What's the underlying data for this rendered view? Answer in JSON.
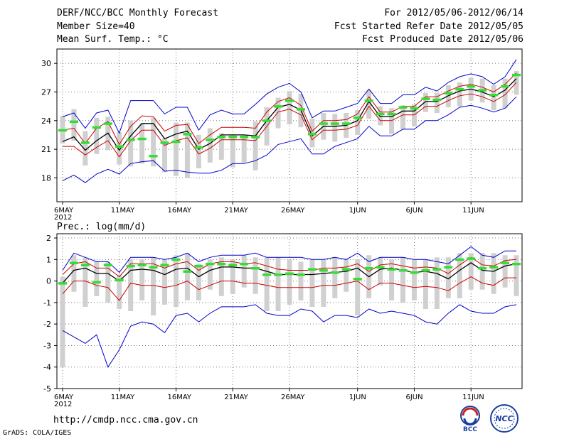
{
  "header": {
    "title": "DERF/NCC/BCC Monthly Forecast",
    "member_size": "Member Size=40",
    "variable": "Mean Surf. Temp.: °C",
    "period": "For 2012/05/06-2012/06/14",
    "start_date": "Fcst Started Refer Date 2012/05/05",
    "produced_date": "Fcst Produced Date 2012/05/06"
  },
  "footer": {
    "url": "http://cmdp.ncc.cma.gov.cn",
    "credit": "GrADS: COLA/IGES",
    "logo_left": "BCC",
    "logo_right": "NCC"
  },
  "colors": {
    "ensemble_mean": "#000000",
    "inner_band": "#cc0000",
    "outer_band": "#0000cc",
    "member_bar": "#d0d0d0",
    "median_mark": "#33dd33",
    "grid": "#777777"
  },
  "chart_data": [
    {
      "type": "line",
      "title": "Mean Surf. Temp.: °C",
      "x_ticks": [
        {
          "day": 0,
          "label": "6MAY",
          "sub": "2012"
        },
        {
          "day": 5,
          "label": "11MAY"
        },
        {
          "day": 10,
          "label": "16MAY"
        },
        {
          "day": 15,
          "label": "21MAY"
        },
        {
          "day": 20,
          "label": "26MAY"
        },
        {
          "day": 26,
          "label": "1JUN"
        },
        {
          "day": 31,
          "label": "6JUN"
        },
        {
          "day": 36,
          "label": "11JUN"
        }
      ],
      "xlim": [
        -0.5,
        40.5
      ],
      "ylim": [
        15.5,
        31.5
      ],
      "y_ticks": [
        18,
        21,
        24,
        27,
        30
      ],
      "mean": [
        21.8,
        22.3,
        20.9,
        21.9,
        22.7,
        20.9,
        22.4,
        23.7,
        23.7,
        22.1,
        22.6,
        22.9,
        21.0,
        21.6,
        22.5,
        22.5,
        22.5,
        22.4,
        24.0,
        25.4,
        25.7,
        25.1,
        22.4,
        23.4,
        23.4,
        23.5,
        24.0,
        26.0,
        24.4,
        24.4,
        25.0,
        25.0,
        26.0,
        26.0,
        26.6,
        27.1,
        27.3,
        27.0,
        26.5,
        27.2,
        28.4
      ],
      "series": [
        {
          "name": "outer_upper",
          "values": [
            24.4,
            24.8,
            23.2,
            24.8,
            25.1,
            22.7,
            26.1,
            26.1,
            26.1,
            24.7,
            25.4,
            25.4,
            23.0,
            24.6,
            25.1,
            24.7,
            24.7,
            25.7,
            26.8,
            27.5,
            27.9,
            27.0,
            24.3,
            25.0,
            25.0,
            25.4,
            25.8,
            27.3,
            25.8,
            25.8,
            26.7,
            26.7,
            27.5,
            27.1,
            28.0,
            28.6,
            28.9,
            28.6,
            27.8,
            28.6,
            30.4
          ]
        },
        {
          "name": "inner_upper",
          "values": [
            23.0,
            23.2,
            21.6,
            23.2,
            23.9,
            21.5,
            23.4,
            24.5,
            24.4,
            22.9,
            23.5,
            23.6,
            21.6,
            22.5,
            23.3,
            23.3,
            23.3,
            23.2,
            24.9,
            26.0,
            26.4,
            25.6,
            22.9,
            24.0,
            24.0,
            24.1,
            24.7,
            26.5,
            24.9,
            24.9,
            25.5,
            25.5,
            26.5,
            26.5,
            27.1,
            27.6,
            27.8,
            27.5,
            27.0,
            27.8,
            29.0
          ]
        },
        {
          "name": "inner_lower",
          "values": [
            21.3,
            21.3,
            20.4,
            21.2,
            21.9,
            20.2,
            21.9,
            23.0,
            23.0,
            21.4,
            21.9,
            22.2,
            20.5,
            21.1,
            22.0,
            22.0,
            22.0,
            21.9,
            23.4,
            24.9,
            25.2,
            24.6,
            22.0,
            23.0,
            23.0,
            23.1,
            23.5,
            25.5,
            24.0,
            24.0,
            24.6,
            24.6,
            25.5,
            25.5,
            26.1,
            26.6,
            26.8,
            26.5,
            26.0,
            26.7,
            28.0
          ]
        },
        {
          "name": "outer_lower",
          "values": [
            17.7,
            18.3,
            17.5,
            18.4,
            18.9,
            18.4,
            19.5,
            19.7,
            19.8,
            18.7,
            18.8,
            18.6,
            18.5,
            18.5,
            18.8,
            19.5,
            19.5,
            19.8,
            20.4,
            21.5,
            21.8,
            22.1,
            20.5,
            20.5,
            21.3,
            21.7,
            22.1,
            23.4,
            22.4,
            22.4,
            23.1,
            23.1,
            24.0,
            24.0,
            24.6,
            25.4,
            25.6,
            25.3,
            24.9,
            25.3,
            26.5
          ]
        }
      ],
      "member_range": [
        [
          21.6,
          24.5
        ],
        [
          21.9,
          25.2
        ],
        [
          19.3,
          22.9
        ],
        [
          20.5,
          24.3
        ],
        [
          20.9,
          24.4
        ],
        [
          19.4,
          22.8
        ],
        [
          19.2,
          24.0
        ],
        [
          19.5,
          23.7
        ],
        [
          19.2,
          24.3
        ],
        [
          18.6,
          22.2
        ],
        [
          18.2,
          23.8
        ],
        [
          18.0,
          23.8
        ],
        [
          19.0,
          22.5
        ],
        [
          19.6,
          23.2
        ],
        [
          19.9,
          22.7
        ],
        [
          19.1,
          22.5
        ],
        [
          19.6,
          22.5
        ],
        [
          18.8,
          23.9
        ],
        [
          21.4,
          25.4
        ],
        [
          23.2,
          26.4
        ],
        [
          23.6,
          27.1
        ],
        [
          23.3,
          26.8
        ],
        [
          21.2,
          24.2
        ],
        [
          22.0,
          24.8
        ],
        [
          21.8,
          24.7
        ],
        [
          22.2,
          24.8
        ],
        [
          22.5,
          25.1
        ],
        [
          24.2,
          27.2
        ],
        [
          23.5,
          25.5
        ],
        [
          22.6,
          25.3
        ],
        [
          23.1,
          25.6
        ],
        [
          23.4,
          25.7
        ],
        [
          24.9,
          26.9
        ],
        [
          24.8,
          26.9
        ],
        [
          25.4,
          27.7
        ],
        [
          25.5,
          28.0
        ],
        [
          26.1,
          28.5
        ],
        [
          25.9,
          28.4
        ],
        [
          25.1,
          27.7
        ],
        [
          25.3,
          28.4
        ],
        [
          26.7,
          29.2
        ]
      ],
      "medians": [
        23.0,
        23.9,
        21.7,
        23.3,
        23.7,
        21.3,
        22.0,
        22.1,
        20.3,
        21.7,
        21.8,
        22.6,
        21.2,
        22.0,
        22.3,
        22.3,
        22.3,
        22.3,
        24.0,
        25.5,
        26.1,
        25.2,
        22.6,
        23.7,
        23.7,
        23.7,
        24.3,
        26.1,
        24.7,
        24.7,
        25.4,
        25.3,
        26.3,
        26.2,
        26.9,
        27.3,
        27.6,
        27.2,
        26.7,
        27.6,
        28.8
      ]
    },
    {
      "type": "line",
      "title": "Prec.: log(mm/d)",
      "x_ticks": [
        {
          "day": 0,
          "label": "6MAY",
          "sub": "2012"
        },
        {
          "day": 5,
          "label": "11MAY"
        },
        {
          "day": 10,
          "label": "16MAY"
        },
        {
          "day": 15,
          "label": "21MAY"
        },
        {
          "day": 20,
          "label": "26MAY"
        },
        {
          "day": 26,
          "label": "1JUN"
        },
        {
          "day": 31,
          "label": "6JUN"
        },
        {
          "day": 36,
          "label": "11JUN"
        }
      ],
      "xlim": [
        -0.5,
        40.5
      ],
      "ylim": [
        -5,
        2.2
      ],
      "y_ticks": [
        -5,
        -4,
        -3,
        -2,
        -1,
        0,
        1,
        2
      ],
      "mean": [
        -0.1,
        0.5,
        0.6,
        0.35,
        0.35,
        0.0,
        0.5,
        0.55,
        0.5,
        0.3,
        0.55,
        0.6,
        0.2,
        0.5,
        0.65,
        0.65,
        0.6,
        0.6,
        0.45,
        0.3,
        0.3,
        0.3,
        0.3,
        0.35,
        0.4,
        0.45,
        0.6,
        0.2,
        0.55,
        0.6,
        0.5,
        0.4,
        0.45,
        0.35,
        0.1,
        0.5,
        0.85,
        0.5,
        0.45,
        0.7,
        0.8
      ],
      "series": [
        {
          "name": "outer_upper",
          "values": [
            0.5,
            1.3,
            1.1,
            0.9,
            0.9,
            0.4,
            1.1,
            1.1,
            1.1,
            1.0,
            1.1,
            1.3,
            0.9,
            1.1,
            1.2,
            1.2,
            1.2,
            1.3,
            1.1,
            1.1,
            1.1,
            1.1,
            1.0,
            1.0,
            1.1,
            1.0,
            1.3,
            0.9,
            1.1,
            1.1,
            1.1,
            1.0,
            1.0,
            0.9,
            0.8,
            1.2,
            1.6,
            1.2,
            1.1,
            1.4,
            1.4
          ]
        },
        {
          "name": "inner_upper",
          "values": [
            0.3,
            0.8,
            0.9,
            0.6,
            0.6,
            0.2,
            0.8,
            0.8,
            0.8,
            0.6,
            0.8,
            0.9,
            0.5,
            0.8,
            0.9,
            0.9,
            0.8,
            0.85,
            0.7,
            0.55,
            0.5,
            0.5,
            0.5,
            0.6,
            0.6,
            0.65,
            0.8,
            0.45,
            0.75,
            0.8,
            0.7,
            0.6,
            0.65,
            0.6,
            0.35,
            0.75,
            1.1,
            0.75,
            0.7,
            0.95,
            1.0
          ]
        },
        {
          "name": "inner_lower",
          "values": [
            -0.6,
            0.0,
            0.0,
            -0.2,
            -0.3,
            -0.9,
            -0.1,
            -0.2,
            -0.2,
            -0.3,
            -0.2,
            0.0,
            -0.4,
            -0.2,
            0.0,
            0.0,
            -0.1,
            -0.1,
            -0.2,
            -0.3,
            -0.3,
            -0.3,
            -0.3,
            -0.2,
            -0.2,
            -0.1,
            0.0,
            -0.4,
            -0.1,
            -0.1,
            -0.2,
            -0.3,
            -0.25,
            -0.3,
            -0.45,
            -0.1,
            0.2,
            -0.1,
            -0.2,
            0.15,
            0.15
          ]
        },
        {
          "name": "outer_lower",
          "values": [
            -2.3,
            -2.6,
            -2.9,
            -2.5,
            -4.0,
            -3.2,
            -2.1,
            -1.9,
            -2.0,
            -2.4,
            -1.6,
            -1.5,
            -1.9,
            -1.5,
            -1.2,
            -1.2,
            -1.2,
            -1.1,
            -1.5,
            -1.6,
            -1.6,
            -1.3,
            -1.4,
            -1.9,
            -1.6,
            -1.6,
            -1.7,
            -1.3,
            -1.5,
            -1.4,
            -1.5,
            -1.6,
            -1.9,
            -2.0,
            -1.5,
            -1.1,
            -1.4,
            -1.5,
            -1.5,
            -1.2,
            -1.1
          ]
        }
      ],
      "member_range": [
        [
          -4.0,
          0.2
        ],
        [
          -0.5,
          1.2
        ],
        [
          -1.2,
          1.1
        ],
        [
          -0.7,
          0.9
        ],
        [
          -1.0,
          0.9
        ],
        [
          -1.3,
          0.3
        ],
        [
          -1.4,
          1.0
        ],
        [
          -0.9,
          1.0
        ],
        [
          -1.6,
          1.1
        ],
        [
          -1.1,
          1.0
        ],
        [
          -1.2,
          1.2
        ],
        [
          -0.9,
          1.3
        ],
        [
          -0.9,
          0.8
        ],
        [
          -0.4,
          1.0
        ],
        [
          -0.7,
          1.1
        ],
        [
          -0.6,
          1.0
        ],
        [
          -0.3,
          1.2
        ],
        [
          -0.6,
          1.1
        ],
        [
          -1.4,
          1.1
        ],
        [
          -1.4,
          1.1
        ],
        [
          -1.1,
          1.0
        ],
        [
          -0.9,
          0.9
        ],
        [
          -1.2,
          1.0
        ],
        [
          -1.2,
          1.0
        ],
        [
          -0.8,
          1.1
        ],
        [
          -0.5,
          1.0
        ],
        [
          -1.6,
          1.0
        ],
        [
          -0.8,
          1.2
        ],
        [
          -0.2,
          1.1
        ],
        [
          -0.9,
          1.0
        ],
        [
          -1.0,
          1.1
        ],
        [
          -0.9,
          1.0
        ],
        [
          -1.3,
          1.0
        ],
        [
          -1.3,
          1.1
        ],
        [
          -0.8,
          1.1
        ],
        [
          -0.8,
          1.3
        ],
        [
          -0.4,
          1.3
        ],
        [
          -0.4,
          1.3
        ],
        [
          -0.6,
          1.3
        ],
        [
          -0.3,
          1.2
        ],
        [
          -0.7,
          1.2
        ]
      ],
      "medians": [
        -0.1,
        0.85,
        0.75,
        -0.05,
        0.75,
        0.05,
        0.7,
        0.75,
        0.65,
        0.75,
        1.0,
        0.45,
        0.7,
        0.8,
        0.8,
        0.75,
        0.8,
        0.6,
        0.3,
        0.3,
        0.35,
        0.3,
        0.55,
        0.5,
        0.4,
        0.55,
        0.1,
        0.6,
        0.65,
        0.55,
        0.5,
        0.4,
        0.5,
        0.55,
        0.65,
        1.0,
        1.05,
        0.6,
        0.65,
        0.85,
        0.8
      ]
    }
  ]
}
